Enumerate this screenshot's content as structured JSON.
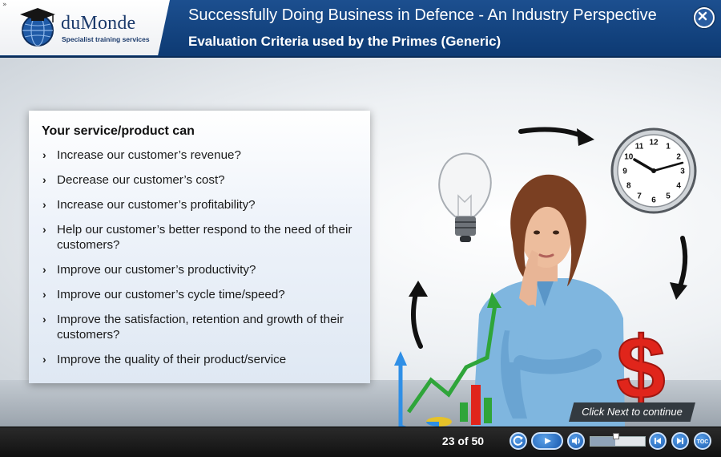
{
  "header": {
    "toggle_glyph": "»",
    "logo": {
      "name": "duMonde",
      "tagline": "Specialist training services",
      "icon": "globe-graduation-cap-icon"
    },
    "course_title": "Successfully Doing Business in Defence - An Industry Perspective",
    "slide_title": "Evaluation Criteria used by the Primes (Generic)",
    "close_icon": "close-icon"
  },
  "content": {
    "heading": "Your service/product can",
    "bullet_glyph": "›",
    "bullets": [
      "Increase our customer’s revenue?",
      "Decrease our customer’s cost?",
      "Increase our customer’s profitability?",
      "Help our customer’s better respond to the need of their customers?",
      "Improve our customer’s productivity?",
      "Improve our customer’s cycle time/speed?",
      "Improve the satisfaction, retention and growth of their customers?",
      "Improve the quality of their product/service"
    ],
    "hint": "Click Next to continue"
  },
  "illustration": {
    "icons": [
      "lightbulb-icon",
      "clock-icon",
      "dollar-sign-icon",
      "growth-chart-icon",
      "cycle-arrows-icon",
      "thinking-woman-figure"
    ],
    "clock_numbers": [
      "12",
      "1",
      "2",
      "3",
      "4",
      "5",
      "6",
      "7",
      "8",
      "9",
      "10",
      "11"
    ]
  },
  "footer": {
    "page_counter": "23 of 50",
    "progress_fraction": 0.46,
    "controls": [
      "replay-icon",
      "play-icon",
      "volume-icon",
      "previous-icon",
      "next-icon",
      "toc-icon"
    ],
    "toc_label": "TOC"
  },
  "colors": {
    "header_blue": "#1c4f8f",
    "control_blue": "#1a5bb0",
    "dollar_red": "#e0251b",
    "chart_green": "#2fa53a",
    "chart_blue": "#2f8fe6"
  }
}
